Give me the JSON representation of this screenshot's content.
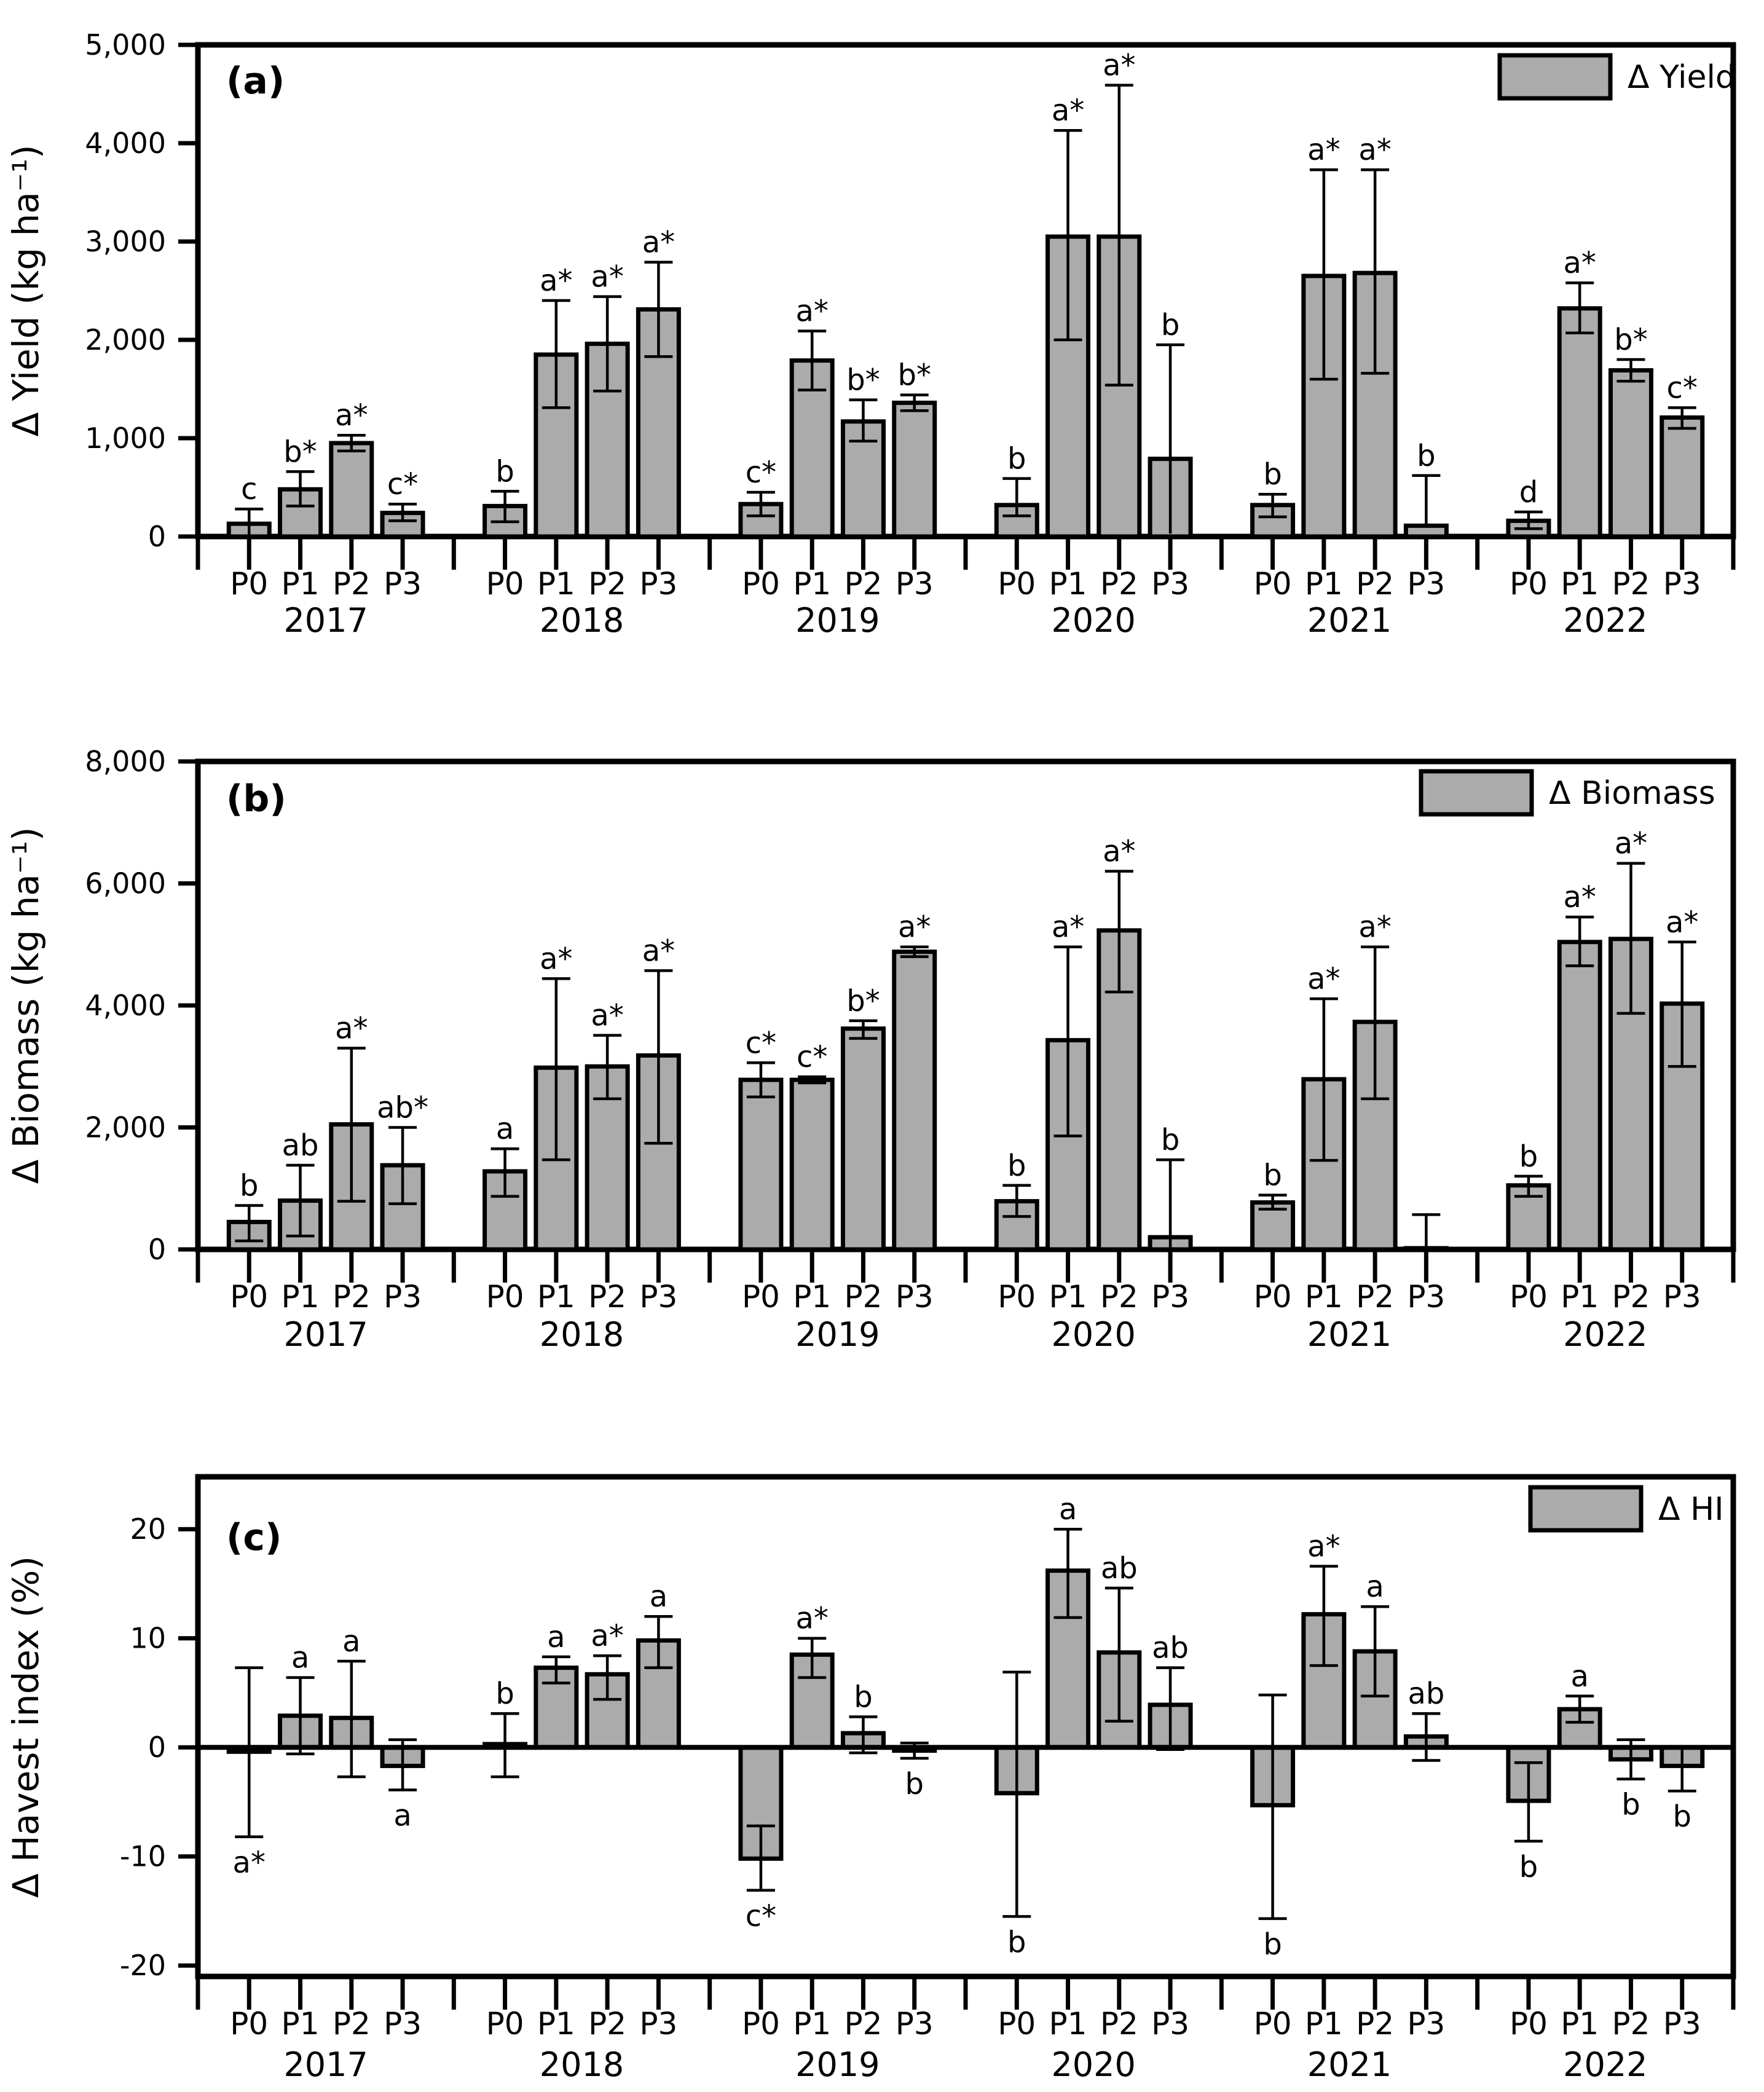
{
  "figure": {
    "background": "#ffffff",
    "bar_fill": "#ababab",
    "bar_stroke": "#000000",
    "treatments": [
      "P0",
      "P1",
      "P2",
      "P3"
    ],
    "years": [
      "2017",
      "2018",
      "2019",
      "2020",
      "2021",
      "2022"
    ]
  },
  "chart_data": [
    {
      "type": "bar",
      "panel_label": "(a)",
      "legend": "Δ Yield",
      "ylabel": "Δ Yield (kg ha⁻¹)",
      "ylim": [
        0,
        5000
      ],
      "grid": false,
      "legend_position": "top-right",
      "yticks": [
        {
          "v": 0,
          "label": "0"
        },
        {
          "v": 1000,
          "label": "1,000"
        },
        {
          "v": 2000,
          "label": "2,000"
        },
        {
          "v": 3000,
          "label": "3,000"
        },
        {
          "v": 4000,
          "label": "4,000"
        },
        {
          "v": 5000,
          "label": "5,000"
        }
      ],
      "years": [
        "2017",
        "2018",
        "2019",
        "2020",
        "2021",
        "2022"
      ],
      "treatments": [
        "P0",
        "P1",
        "P2",
        "P3"
      ],
      "bars": [
        {
          "year": "2017",
          "treatment": "P0",
          "value": 130,
          "whisker_low": -20,
          "whisker_high": 280,
          "lower_cap": false,
          "letter": "c",
          "letter_pos": "above"
        },
        {
          "year": "2017",
          "treatment": "P1",
          "value": 480,
          "whisker_low": 310,
          "whisker_high": 660,
          "letter": "b*",
          "letter_pos": "above"
        },
        {
          "year": "2017",
          "treatment": "P2",
          "value": 950,
          "whisker_low": 870,
          "whisker_high": 1030,
          "letter": "a*",
          "letter_pos": "above"
        },
        {
          "year": "2017",
          "treatment": "P3",
          "value": 240,
          "whisker_low": 160,
          "whisker_high": 330,
          "letter": "c*",
          "letter_pos": "above"
        },
        {
          "year": "2018",
          "treatment": "P0",
          "value": 310,
          "whisker_low": 150,
          "whisker_high": 460,
          "letter": "b",
          "letter_pos": "above"
        },
        {
          "year": "2018",
          "treatment": "P1",
          "value": 1850,
          "whisker_low": 1310,
          "whisker_high": 2400,
          "letter": "a*",
          "letter_pos": "above"
        },
        {
          "year": "2018",
          "treatment": "P2",
          "value": 1960,
          "whisker_low": 1480,
          "whisker_high": 2440,
          "letter": "a*",
          "letter_pos": "above"
        },
        {
          "year": "2018",
          "treatment": "P3",
          "value": 2310,
          "whisker_low": 1830,
          "whisker_high": 2790,
          "letter": "a*",
          "letter_pos": "above"
        },
        {
          "year": "2019",
          "treatment": "P0",
          "value": 330,
          "whisker_low": 210,
          "whisker_high": 450,
          "letter": "c*",
          "letter_pos": "above"
        },
        {
          "year": "2019",
          "treatment": "P1",
          "value": 1790,
          "whisker_low": 1490,
          "whisker_high": 2090,
          "letter": "a*",
          "letter_pos": "above"
        },
        {
          "year": "2019",
          "treatment": "P2",
          "value": 1170,
          "whisker_low": 970,
          "whisker_high": 1390,
          "letter": "b*",
          "letter_pos": "above"
        },
        {
          "year": "2019",
          "treatment": "P3",
          "value": 1360,
          "whisker_low": 1280,
          "whisker_high": 1440,
          "letter": "b*",
          "letter_pos": "above"
        },
        {
          "year": "2020",
          "treatment": "P0",
          "value": 320,
          "whisker_low": 210,
          "whisker_high": 590,
          "letter": "b",
          "letter_pos": "above"
        },
        {
          "year": "2020",
          "treatment": "P1",
          "value": 3050,
          "whisker_low": 2000,
          "whisker_high": 4130,
          "letter": "a*",
          "letter_pos": "above"
        },
        {
          "year": "2020",
          "treatment": "P2",
          "value": 3050,
          "whisker_low": 1540,
          "whisker_high": 4590,
          "letter": "a*",
          "letter_pos": "above"
        },
        {
          "year": "2020",
          "treatment": "P3",
          "value": 790,
          "whisker_low": 30,
          "whisker_high": 1950,
          "lower_cap": false,
          "letter": "b",
          "letter_pos": "above"
        },
        {
          "year": "2021",
          "treatment": "P0",
          "value": 320,
          "whisker_low": 200,
          "whisker_high": 430,
          "letter": "b",
          "letter_pos": "above"
        },
        {
          "year": "2021",
          "treatment": "P1",
          "value": 2650,
          "whisker_low": 1600,
          "whisker_high": 3730,
          "letter": "a*",
          "letter_pos": "above"
        },
        {
          "year": "2021",
          "treatment": "P2",
          "value": 2680,
          "whisker_low": 1660,
          "whisker_high": 3730,
          "letter": "a*",
          "letter_pos": "above"
        },
        {
          "year": "2021",
          "treatment": "P3",
          "value": 110,
          "whisker_low": 110,
          "whisker_high": 620,
          "lower_cap": false,
          "letter": "b",
          "letter_pos": "above"
        },
        {
          "year": "2022",
          "treatment": "P0",
          "value": 160,
          "whisker_low": 80,
          "whisker_high": 250,
          "letter": "d",
          "letter_pos": "above"
        },
        {
          "year": "2022",
          "treatment": "P1",
          "value": 2320,
          "whisker_low": 2070,
          "whisker_high": 2580,
          "letter": "a*",
          "letter_pos": "above"
        },
        {
          "year": "2022",
          "treatment": "P2",
          "value": 1690,
          "whisker_low": 1580,
          "whisker_high": 1800,
          "letter": "b*",
          "letter_pos": "above"
        },
        {
          "year": "2022",
          "treatment": "P3",
          "value": 1210,
          "whisker_low": 1100,
          "whisker_high": 1310,
          "letter": "c*",
          "letter_pos": "above"
        }
      ]
    },
    {
      "type": "bar",
      "panel_label": "(b)",
      "legend": "Δ Biomass",
      "ylabel": "Δ Biomass (kg ha⁻¹)",
      "ylim": [
        0,
        8000
      ],
      "grid": false,
      "legend_position": "top-right",
      "yticks": [
        {
          "v": 0,
          "label": "0"
        },
        {
          "v": 2000,
          "label": "2,000"
        },
        {
          "v": 4000,
          "label": "4,000"
        },
        {
          "v": 6000,
          "label": "6,000"
        },
        {
          "v": 8000,
          "label": "8,000"
        }
      ],
      "years": [
        "2017",
        "2018",
        "2019",
        "2020",
        "2021",
        "2022"
      ],
      "treatments": [
        "P0",
        "P1",
        "P2",
        "P3"
      ],
      "bars": [
        {
          "year": "2017",
          "treatment": "P0",
          "value": 450,
          "whisker_low": 140,
          "whisker_high": 720,
          "letter": "b",
          "letter_pos": "above"
        },
        {
          "year": "2017",
          "treatment": "P1",
          "value": 800,
          "whisker_low": 220,
          "whisker_high": 1380,
          "letter": "ab",
          "letter_pos": "above"
        },
        {
          "year": "2017",
          "treatment": "P2",
          "value": 2050,
          "whisker_low": 790,
          "whisker_high": 3300,
          "letter": "a*",
          "letter_pos": "above"
        },
        {
          "year": "2017",
          "treatment": "P3",
          "value": 1380,
          "whisker_low": 750,
          "whisker_high": 2000,
          "letter": "ab*",
          "letter_pos": "above"
        },
        {
          "year": "2018",
          "treatment": "P0",
          "value": 1280,
          "whisker_low": 870,
          "whisker_high": 1650,
          "letter": "a",
          "letter_pos": "above"
        },
        {
          "year": "2018",
          "treatment": "P1",
          "value": 2980,
          "whisker_low": 1470,
          "whisker_high": 4440,
          "letter": "a*",
          "letter_pos": "above"
        },
        {
          "year": "2018",
          "treatment": "P2",
          "value": 3000,
          "whisker_low": 2470,
          "whisker_high": 3510,
          "letter": "a*",
          "letter_pos": "above"
        },
        {
          "year": "2018",
          "treatment": "P3",
          "value": 3180,
          "whisker_low": 1740,
          "whisker_high": 4570,
          "letter": "a*",
          "letter_pos": "above"
        },
        {
          "year": "2019",
          "treatment": "P0",
          "value": 2780,
          "whisker_low": 2500,
          "whisker_high": 3060,
          "letter": "c*",
          "letter_pos": "above"
        },
        {
          "year": "2019",
          "treatment": "P1",
          "value": 2780,
          "whisker_low": 2730,
          "whisker_high": 2830,
          "letter": "c*",
          "letter_pos": "above"
        },
        {
          "year": "2019",
          "treatment": "P2",
          "value": 3620,
          "whisker_low": 3460,
          "whisker_high": 3750,
          "letter": "b*",
          "letter_pos": "above"
        },
        {
          "year": "2019",
          "treatment": "P3",
          "value": 4880,
          "whisker_low": 4800,
          "whisker_high": 4960,
          "letter": "a*",
          "letter_pos": "above"
        },
        {
          "year": "2020",
          "treatment": "P0",
          "value": 790,
          "whisker_low": 540,
          "whisker_high": 1050,
          "letter": "b",
          "letter_pos": "above"
        },
        {
          "year": "2020",
          "treatment": "P1",
          "value": 3430,
          "whisker_low": 1860,
          "whisker_high": 4960,
          "letter": "a*",
          "letter_pos": "above"
        },
        {
          "year": "2020",
          "treatment": "P2",
          "value": 5230,
          "whisker_low": 4220,
          "whisker_high": 6200,
          "letter": "a*",
          "letter_pos": "above"
        },
        {
          "year": "2020",
          "treatment": "P3",
          "value": 200,
          "whisker_low": 20,
          "whisker_high": 1470,
          "lower_cap": false,
          "letter": "b",
          "letter_pos": "above"
        },
        {
          "year": "2021",
          "treatment": "P0",
          "value": 770,
          "whisker_low": 660,
          "whisker_high": 890,
          "letter": "b",
          "letter_pos": "above"
        },
        {
          "year": "2021",
          "treatment": "P1",
          "value": 2790,
          "whisker_low": 1460,
          "whisker_high": 4110,
          "letter": "a*",
          "letter_pos": "above"
        },
        {
          "year": "2021",
          "treatment": "P2",
          "value": 3730,
          "whisker_low": 2470,
          "whisker_high": 4960,
          "letter": "a*",
          "letter_pos": "above"
        },
        {
          "year": "2021",
          "treatment": "P3",
          "value": 20,
          "whisker_low": 20,
          "whisker_high": 570,
          "lower_cap": false,
          "letter": "",
          "letter_pos": "above"
        },
        {
          "year": "2022",
          "treatment": "P0",
          "value": 1050,
          "whisker_low": 870,
          "whisker_high": 1200,
          "letter": "b",
          "letter_pos": "above"
        },
        {
          "year": "2022",
          "treatment": "P1",
          "value": 5040,
          "whisker_low": 4650,
          "whisker_high": 5450,
          "letter": "a*",
          "letter_pos": "above"
        },
        {
          "year": "2022",
          "treatment": "P2",
          "value": 5090,
          "whisker_low": 3870,
          "whisker_high": 6330,
          "letter": "a*",
          "letter_pos": "above"
        },
        {
          "year": "2022",
          "treatment": "P3",
          "value": 4030,
          "whisker_low": 3000,
          "whisker_high": 5040,
          "letter": "a*",
          "letter_pos": "above"
        }
      ]
    },
    {
      "type": "bar",
      "panel_label": "(c)",
      "legend": "Δ HI",
      "ylabel": "Δ Havest index (%)",
      "ylim": [
        -21,
        24.8
      ],
      "grid": false,
      "legend_position": "top-right",
      "yticks": [
        {
          "v": -20,
          "label": "-20"
        },
        {
          "v": -10,
          "label": "-10"
        },
        {
          "v": 0,
          "label": "0"
        },
        {
          "v": 10,
          "label": "10"
        },
        {
          "v": 20,
          "label": "20"
        }
      ],
      "years": [
        "2017",
        "2018",
        "2019",
        "2020",
        "2021",
        "2022"
      ],
      "treatments": [
        "P0",
        "P1",
        "P2",
        "P3"
      ],
      "bars": [
        {
          "year": "2017",
          "treatment": "P0",
          "value": -0.4,
          "whisker_low": -8.2,
          "whisker_high": 7.3,
          "letter": "a*",
          "letter_pos": "below"
        },
        {
          "year": "2017",
          "treatment": "P1",
          "value": 2.9,
          "whisker_low": -0.6,
          "whisker_high": 6.4,
          "letter": "a",
          "letter_pos": "above"
        },
        {
          "year": "2017",
          "treatment": "P2",
          "value": 2.7,
          "whisker_low": -2.7,
          "whisker_high": 7.9,
          "letter": "a",
          "letter_pos": "above"
        },
        {
          "year": "2017",
          "treatment": "P3",
          "value": -1.7,
          "whisker_low": -3.9,
          "whisker_high": 0.7,
          "letter": "a",
          "letter_pos": "below"
        },
        {
          "year": "2018",
          "treatment": "P0",
          "value": 0.3,
          "whisker_low": -2.7,
          "whisker_high": 3.1,
          "letter": "b",
          "letter_pos": "above"
        },
        {
          "year": "2018",
          "treatment": "P1",
          "value": 7.3,
          "whisker_low": 5.9,
          "whisker_high": 8.3,
          "letter": "a",
          "letter_pos": "above"
        },
        {
          "year": "2018",
          "treatment": "P2",
          "value": 6.7,
          "whisker_low": 4.4,
          "whisker_high": 8.4,
          "letter": "a*",
          "letter_pos": "above"
        },
        {
          "year": "2018",
          "treatment": "P3",
          "value": 9.8,
          "whisker_low": 7.3,
          "whisker_high": 12.0,
          "letter": "a",
          "letter_pos": "above"
        },
        {
          "year": "2019",
          "treatment": "P0",
          "value": -10.2,
          "whisker_low": -13.1,
          "whisker_high": -7.2,
          "letter": "c*",
          "letter_pos": "below"
        },
        {
          "year": "2019",
          "treatment": "P1",
          "value": 8.5,
          "whisker_low": 6.4,
          "whisker_high": 10.0,
          "letter": "a*",
          "letter_pos": "above"
        },
        {
          "year": "2019",
          "treatment": "P2",
          "value": 1.3,
          "whisker_low": -0.5,
          "whisker_high": 2.8,
          "letter": "b",
          "letter_pos": "above"
        },
        {
          "year": "2019",
          "treatment": "P3",
          "value": -0.3,
          "whisker_low": -1.0,
          "whisker_high": 0.4,
          "letter": "b",
          "letter_pos": "below"
        },
        {
          "year": "2020",
          "treatment": "P0",
          "value": -4.2,
          "whisker_low": -15.5,
          "whisker_high": 6.9,
          "letter": "b",
          "letter_pos": "below"
        },
        {
          "year": "2020",
          "treatment": "P1",
          "value": 16.2,
          "whisker_low": 11.9,
          "whisker_high": 20.0,
          "letter": "a",
          "letter_pos": "above"
        },
        {
          "year": "2020",
          "treatment": "P2",
          "value": 8.7,
          "whisker_low": 2.4,
          "whisker_high": 14.6,
          "letter": "ab",
          "letter_pos": "above"
        },
        {
          "year": "2020",
          "treatment": "P3",
          "value": 3.9,
          "whisker_low": -0.2,
          "whisker_high": 7.3,
          "letter": "ab",
          "letter_pos": "above"
        },
        {
          "year": "2021",
          "treatment": "P0",
          "value": -5.3,
          "whisker_low": -15.7,
          "whisker_high": 4.8,
          "letter": "b",
          "letter_pos": "below"
        },
        {
          "year": "2021",
          "treatment": "P1",
          "value": 12.2,
          "whisker_low": 7.5,
          "whisker_high": 16.6,
          "letter": "a*",
          "letter_pos": "above"
        },
        {
          "year": "2021",
          "treatment": "P2",
          "value": 8.8,
          "whisker_low": 4.7,
          "whisker_high": 12.9,
          "letter": "a",
          "letter_pos": "above"
        },
        {
          "year": "2021",
          "treatment": "P3",
          "value": 1.0,
          "whisker_low": -1.2,
          "whisker_high": 3.1,
          "letter": "ab",
          "letter_pos": "above"
        },
        {
          "year": "2022",
          "treatment": "P0",
          "value": -4.9,
          "whisker_low": -8.6,
          "whisker_high": -1.4,
          "letter": "b",
          "letter_pos": "below"
        },
        {
          "year": "2022",
          "treatment": "P1",
          "value": 3.5,
          "whisker_low": 2.3,
          "whisker_high": 4.7,
          "letter": "a",
          "letter_pos": "above"
        },
        {
          "year": "2022",
          "treatment": "P2",
          "value": -1.1,
          "whisker_low": -2.9,
          "whisker_high": 0.7,
          "letter": "b",
          "letter_pos": "below"
        },
        {
          "year": "2022",
          "treatment": "P3",
          "value": -1.7,
          "whisker_low": -4.0,
          "whisker_high": 0.0,
          "letter": "b",
          "letter_pos": "below"
        }
      ]
    }
  ]
}
